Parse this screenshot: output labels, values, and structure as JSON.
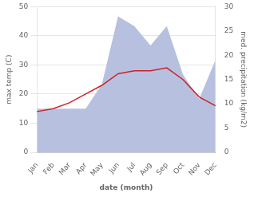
{
  "chart_data": {
    "type": "line",
    "xlabel": "date (month)",
    "ylabel": "max temp (C)",
    "y2label": "med. precipitation (kg/m2)",
    "categories": [
      "Jan",
      "Feb",
      "Mar",
      "Apr",
      "May",
      "Jun",
      "Jul",
      "Aug",
      "Sep",
      "Oct",
      "Nov",
      "Dec"
    ],
    "series": [
      {
        "type": "area",
        "color": "#b8c0e0",
        "axis": "y2",
        "values": [
          9,
          9,
          9,
          9,
          14,
          28,
          26,
          22,
          26,
          16,
          11,
          19
        ]
      },
      {
        "type": "line",
        "color": "#cc2222",
        "values": [
          14,
          15,
          17,
          20,
          23,
          27,
          28,
          28,
          29,
          25,
          19,
          16
        ]
      }
    ],
    "ylim": [
      0,
      50
    ],
    "yticks": [
      0,
      10,
      20,
      30,
      40,
      50
    ],
    "y2lim": [
      0,
      30
    ],
    "y2ticks": [
      0,
      5,
      10,
      15,
      20,
      25,
      30
    ],
    "grid": true
  }
}
